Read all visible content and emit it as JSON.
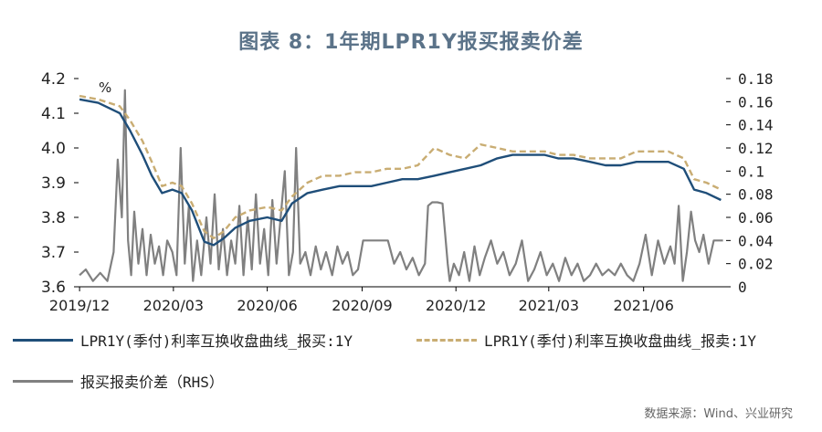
{
  "title": "图表 8：1年期LPR1Y报买报卖价差",
  "source": "数据来源：Wind、兴业研究",
  "colors": {
    "bid": "#1f4e79",
    "ask": "#c9ad73",
    "spread": "#808080"
  },
  "chart_data": {
    "type": "line",
    "unit_label": "%",
    "x_ticks": [
      "2019/12",
      "2020/03",
      "2020/06",
      "2020/09",
      "2020/12",
      "2021/03",
      "2021/06"
    ],
    "left_axis": {
      "ylim": [
        3.6,
        4.2
      ],
      "ticks": [
        "3.6",
        "3.7",
        "3.8",
        "3.9",
        "4.0",
        "4.1",
        "4.2"
      ]
    },
    "right_axis": {
      "ylim": [
        0,
        0.18
      ],
      "ticks": [
        "0",
        "0.02",
        "0.04",
        "0.06",
        "0.08",
        "0.1",
        "0.12",
        "0.14",
        "0.16",
        "0.18"
      ]
    },
    "series": [
      {
        "name": "LPR1Y(季付)利率互换收盘曲线_报买:1Y",
        "axis": "left",
        "style": "solid",
        "x": [
          "2019-12-02",
          "2019-12-20",
          "2020-01-10",
          "2020-01-20",
          "2020-02-01",
          "2020-02-10",
          "2020-02-20",
          "2020-03-01",
          "2020-03-10",
          "2020-03-20",
          "2020-04-01",
          "2020-04-10",
          "2020-04-20",
          "2020-05-01",
          "2020-05-15",
          "2020-06-01",
          "2020-06-15",
          "2020-06-25",
          "2020-07-10",
          "2020-07-25",
          "2020-08-10",
          "2020-08-25",
          "2020-09-10",
          "2020-09-25",
          "2020-10-10",
          "2020-10-25",
          "2020-11-10",
          "2020-11-25",
          "2020-12-10",
          "2020-12-25",
          "2021-01-10",
          "2021-01-25",
          "2021-02-10",
          "2021-02-25",
          "2021-03-10",
          "2021-03-25",
          "2021-04-10",
          "2021-04-25",
          "2021-05-10",
          "2021-05-25",
          "2021-06-10",
          "2021-06-25",
          "2021-07-10",
          "2021-07-20",
          "2021-08-01",
          "2021-08-15"
        ],
        "y": [
          4.14,
          4.13,
          4.1,
          4.05,
          3.98,
          3.92,
          3.87,
          3.88,
          3.87,
          3.82,
          3.73,
          3.72,
          3.74,
          3.77,
          3.79,
          3.8,
          3.79,
          3.84,
          3.87,
          3.88,
          3.89,
          3.89,
          3.89,
          3.9,
          3.91,
          3.91,
          3.92,
          3.93,
          3.94,
          3.95,
          3.97,
          3.98,
          3.98,
          3.98,
          3.97,
          3.97,
          3.96,
          3.95,
          3.95,
          3.96,
          3.96,
          3.96,
          3.94,
          3.88,
          3.87,
          3.85
        ]
      },
      {
        "name": "LPR1Y(季付)利率互换收盘曲线_报卖:1Y",
        "axis": "left",
        "style": "dashed",
        "x": [
          "2019-12-02",
          "2019-12-20",
          "2020-01-10",
          "2020-01-20",
          "2020-02-01",
          "2020-02-10",
          "2020-02-20",
          "2020-03-01",
          "2020-03-10",
          "2020-03-20",
          "2020-04-01",
          "2020-04-10",
          "2020-04-20",
          "2020-05-01",
          "2020-05-15",
          "2020-06-01",
          "2020-06-15",
          "2020-06-25",
          "2020-07-10",
          "2020-07-25",
          "2020-08-10",
          "2020-08-25",
          "2020-09-10",
          "2020-09-25",
          "2020-10-10",
          "2020-10-25",
          "2020-11-10",
          "2020-11-25",
          "2020-12-10",
          "2020-12-25",
          "2021-01-10",
          "2021-01-25",
          "2021-02-10",
          "2021-02-25",
          "2021-03-10",
          "2021-03-25",
          "2021-04-10",
          "2021-04-25",
          "2021-05-10",
          "2021-05-25",
          "2021-06-10",
          "2021-06-25",
          "2021-07-10",
          "2021-07-20",
          "2021-08-01",
          "2021-08-15"
        ],
        "y": [
          4.15,
          4.14,
          4.12,
          4.08,
          4.02,
          3.96,
          3.89,
          3.9,
          3.89,
          3.84,
          3.76,
          3.74,
          3.76,
          3.8,
          3.82,
          3.83,
          3.82,
          3.86,
          3.9,
          3.92,
          3.92,
          3.93,
          3.93,
          3.94,
          3.94,
          3.95,
          4.0,
          3.98,
          3.97,
          4.01,
          4.0,
          3.99,
          3.99,
          3.99,
          3.98,
          3.98,
          3.97,
          3.97,
          3.97,
          3.99,
          3.99,
          3.99,
          3.97,
          3.91,
          3.9,
          3.88
        ]
      },
      {
        "name": "报买报卖价差（RHS）",
        "axis": "right",
        "style": "solid",
        "x": [
          "2019-12-02",
          "2019-12-08",
          "2019-12-15",
          "2019-12-22",
          "2019-12-29",
          "2020-01-04",
          "2020-01-08",
          "2020-01-12",
          "2020-01-15",
          "2020-01-18",
          "2020-01-21",
          "2020-01-24",
          "2020-01-28",
          "2020-02-01",
          "2020-02-05",
          "2020-02-09",
          "2020-02-13",
          "2020-02-17",
          "2020-02-21",
          "2020-02-25",
          "2020-03-01",
          "2020-03-05",
          "2020-03-09",
          "2020-03-13",
          "2020-03-17",
          "2020-03-21",
          "2020-03-25",
          "2020-03-29",
          "2020-04-03",
          "2020-04-07",
          "2020-04-11",
          "2020-04-15",
          "2020-04-19",
          "2020-04-23",
          "2020-04-27",
          "2020-05-01",
          "2020-05-05",
          "2020-05-09",
          "2020-05-13",
          "2020-05-17",
          "2020-05-21",
          "2020-05-25",
          "2020-05-29",
          "2020-06-02",
          "2020-06-06",
          "2020-06-10",
          "2020-06-14",
          "2020-06-18",
          "2020-06-22",
          "2020-06-26",
          "2020-06-29",
          "2020-07-03",
          "2020-07-08",
          "2020-07-13",
          "2020-07-18",
          "2020-07-23",
          "2020-07-28",
          "2020-08-03",
          "2020-08-08",
          "2020-08-13",
          "2020-08-18",
          "2020-08-23",
          "2020-08-28",
          "2020-09-02",
          "2020-09-08",
          "2020-09-14",
          "2020-09-20",
          "2020-09-26",
          "2020-10-02",
          "2020-10-08",
          "2020-10-14",
          "2020-10-20",
          "2020-10-26",
          "2020-11-01",
          "2020-11-04",
          "2020-11-08",
          "2020-11-13",
          "2020-11-18",
          "2020-11-23",
          "2020-11-25",
          "2020-11-29",
          "2020-12-04",
          "2020-12-09",
          "2020-12-14",
          "2020-12-19",
          "2020-12-24",
          "2020-12-29",
          "2021-01-04",
          "2021-01-10",
          "2021-01-16",
          "2021-01-22",
          "2021-01-28",
          "2021-02-03",
          "2021-02-09",
          "2021-02-15",
          "2021-02-21",
          "2021-02-27",
          "2021-03-05",
          "2021-03-11",
          "2021-03-17",
          "2021-03-23",
          "2021-03-29",
          "2021-04-04",
          "2021-04-10",
          "2021-04-16",
          "2021-04-22",
          "2021-04-28",
          "2021-05-04",
          "2021-05-10",
          "2021-05-16",
          "2021-05-22",
          "2021-05-28",
          "2021-06-03",
          "2021-06-09",
          "2021-06-15",
          "2021-06-21",
          "2021-06-27",
          "2021-07-01",
          "2021-07-05",
          "2021-07-09",
          "2021-07-13",
          "2021-07-17",
          "2021-07-21",
          "2021-07-25",
          "2021-07-29",
          "2021-08-03",
          "2021-08-08",
          "2021-08-13",
          "2021-08-17"
        ],
        "y": [
          0.01,
          0.015,
          0.005,
          0.012,
          0.005,
          0.03,
          0.11,
          0.06,
          0.17,
          0.04,
          0.01,
          0.065,
          0.02,
          0.05,
          0.01,
          0.045,
          0.02,
          0.035,
          0.01,
          0.04,
          0.03,
          0.01,
          0.12,
          0.02,
          0.07,
          0.005,
          0.04,
          0.01,
          0.06,
          0.02,
          0.08,
          0.015,
          0.05,
          0.01,
          0.04,
          0.02,
          0.07,
          0.01,
          0.06,
          0.015,
          0.08,
          0.02,
          0.05,
          0.01,
          0.075,
          0.02,
          0.06,
          0.1,
          0.01,
          0.03,
          0.12,
          0.02,
          0.03,
          0.01,
          0.035,
          0.015,
          0.03,
          0.01,
          0.035,
          0.02,
          0.03,
          0.01,
          0.015,
          0.04,
          0.04,
          0.04,
          0.04,
          0.04,
          0.02,
          0.03,
          0.015,
          0.025,
          0.01,
          0.02,
          0.07,
          0.073,
          0.073,
          0.072,
          0.02,
          0.005,
          0.02,
          0.01,
          0.03,
          0.005,
          0.035,
          0.01,
          0.025,
          0.04,
          0.02,
          0.03,
          0.01,
          0.02,
          0.04,
          0.005,
          0.015,
          0.03,
          0.01,
          0.02,
          0.005,
          0.025,
          0.01,
          0.02,
          0.005,
          0.01,
          0.02,
          0.01,
          0.015,
          0.01,
          0.02,
          0.01,
          0.005,
          0.02,
          0.045,
          0.01,
          0.04,
          0.02,
          0.035,
          0.02,
          0.07,
          0.005,
          0.03,
          0.065,
          0.04,
          0.03,
          0.045,
          0.02,
          0.04,
          0.04,
          0.04
        ]
      }
    ]
  },
  "legend": {
    "bid_label": "LPR1Y(季付)利率互换收盘曲线_报买:1Y",
    "ask_label": "LPR1Y(季付)利率互换收盘曲线_报卖:1Y",
    "spread_label": "报买报卖价差（RHS）"
  }
}
